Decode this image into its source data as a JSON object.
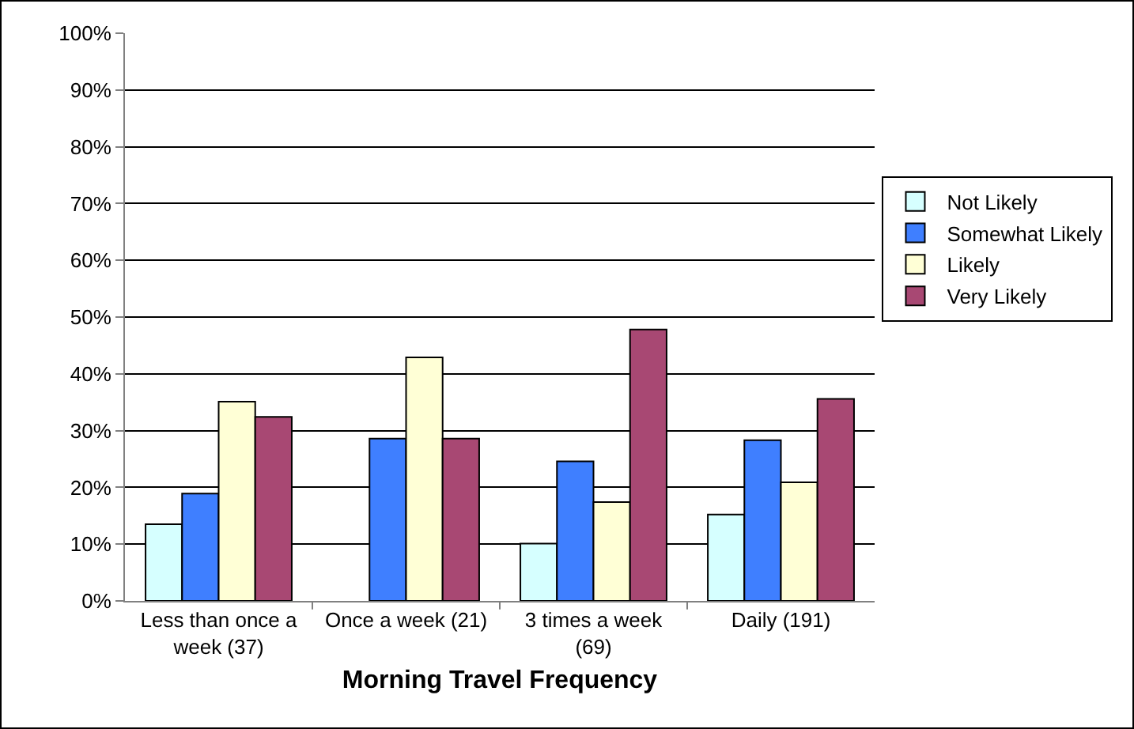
{
  "chart_data": {
    "type": "bar",
    "xlabel": "Morning Travel Frequency",
    "categories": [
      "Less than once a week (37)",
      "Once a week (21)",
      "3 times a week (69)",
      "Daily (191)"
    ],
    "series": [
      {
        "name": "Not Likely",
        "color": "#d6ffff",
        "values": [
          13.5,
          null,
          10.1,
          15.2
        ]
      },
      {
        "name": "Somewhat Likely",
        "color": "#3f7fff",
        "values": [
          18.9,
          28.6,
          24.6,
          28.3
        ]
      },
      {
        "name": "Likely",
        "color": "#ffffd6",
        "values": [
          35.1,
          42.9,
          17.4,
          20.9
        ]
      },
      {
        "name": "Very Likely",
        "color": "#a84873",
        "values": [
          32.4,
          28.6,
          47.8,
          35.6
        ]
      }
    ],
    "ylim": [
      0,
      100
    ],
    "yticks": [
      {
        "value": 0,
        "label": "0%"
      },
      {
        "value": 10,
        "label": "10%"
      },
      {
        "value": 20,
        "label": "20%"
      },
      {
        "value": 30,
        "label": "30%"
      },
      {
        "value": 40,
        "label": "40%"
      },
      {
        "value": 50,
        "label": "50%"
      },
      {
        "value": 60,
        "label": "60%"
      },
      {
        "value": 70,
        "label": "70%"
      },
      {
        "value": 80,
        "label": "80%"
      },
      {
        "value": 90,
        "label": "90%"
      },
      {
        "value": 100,
        "label": "100%"
      }
    ],
    "grid": "y",
    "legend": "right"
  }
}
